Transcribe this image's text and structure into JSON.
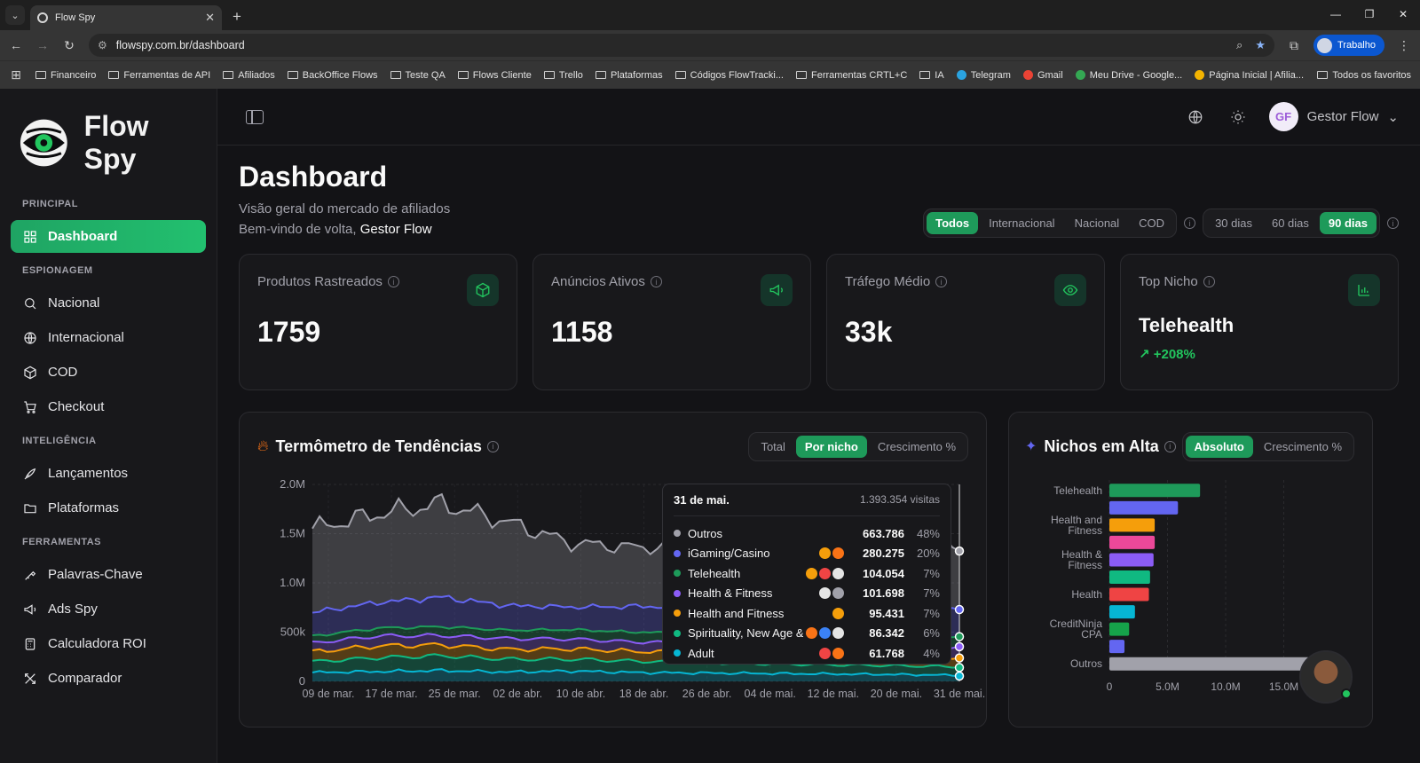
{
  "browser": {
    "tab_title": "Flow Spy",
    "url": "flowspy.com.br/dashboard",
    "profile": "Trabalho",
    "bookmarks": [
      "Financeiro",
      "Ferramentas de API",
      "Afiliados",
      "BackOffice Flows",
      "Teste QA",
      "Flows Cliente",
      "Trello",
      "Plataformas",
      "Códigos FlowTracki...",
      "Ferramentas CRTL+C",
      "IA",
      "Telegram",
      "Gmail",
      "Meu Drive - Google...",
      "Página Inicial | Afilia..."
    ],
    "bookmarks_right": "Todos os favoritos"
  },
  "sidebar": {
    "brand": "Flow Spy",
    "sections": [
      {
        "label": "PRINCIPAL",
        "items": [
          {
            "label": "Dashboard",
            "icon": "grid-icon",
            "active": true
          }
        ]
      },
      {
        "label": "ESPIONAGEM",
        "items": [
          {
            "label": "Nacional",
            "icon": "search-icon"
          },
          {
            "label": "Internacional",
            "icon": "globe-icon"
          },
          {
            "label": "COD",
            "icon": "box-icon"
          },
          {
            "label": "Checkout",
            "icon": "cart-icon"
          }
        ]
      },
      {
        "label": "INTELIGÊNCIA",
        "items": [
          {
            "label": "Lançamentos",
            "icon": "rocket-icon"
          },
          {
            "label": "Plataformas",
            "icon": "folder-icon"
          }
        ]
      },
      {
        "label": "FERRAMENTAS",
        "items": [
          {
            "label": "Palavras-Chave",
            "icon": "key-icon"
          },
          {
            "label": "Ads Spy",
            "icon": "megaphone-icon"
          },
          {
            "label": "Calculadora ROI",
            "icon": "calculator-icon"
          },
          {
            "label": "Comparador",
            "icon": "compare-icon"
          }
        ]
      }
    ]
  },
  "topbar": {
    "user_initials": "GF",
    "user_name": "Gestor Flow"
  },
  "header": {
    "title": "Dashboard",
    "subtitle": "Visão geral do mercado de afiliados",
    "welcome": "Bem-vindo de volta,",
    "welcome_name": "Gestor Flow",
    "market_filters": [
      "Todos",
      "Internacional",
      "Nacional",
      "COD"
    ],
    "market_selected": "Todos",
    "period_filters": [
      "30 dias",
      "60 dias",
      "90 dias"
    ],
    "period_selected": "90 dias"
  },
  "cards": [
    {
      "label": "Produtos Rastreados",
      "value": "1759",
      "icon": "box-icon"
    },
    {
      "label": "Anúncios Ativos",
      "value": "1158",
      "icon": "megaphone-icon"
    },
    {
      "label": "Tráfego Médio",
      "value": "33k",
      "icon": "eye-icon"
    },
    {
      "label": "Top Nicho",
      "value": "Telehealth",
      "growth": "+208%",
      "icon": "bar-chart-icon"
    }
  ],
  "trend": {
    "title": "Termômetro de Tendências",
    "tabs": [
      "Total",
      "Por nicho",
      "Crescimento %"
    ],
    "selected": "Por nicho",
    "tooltip": {
      "date": "31 de mai.",
      "total": "1.393.354 visitas",
      "rows": [
        {
          "name": "Outros",
          "value": "663.786",
          "pct": "48%",
          "color": "#a1a1aa"
        },
        {
          "name": "iGaming/Casino",
          "value": "280.275",
          "pct": "20%",
          "color": "#6366f1"
        },
        {
          "name": "Telehealth",
          "value": "104.054",
          "pct": "7%",
          "color": "#1e9a5a"
        },
        {
          "name": "Health & Fitness",
          "value": "101.698",
          "pct": "7%",
          "color": "#8b5cf6"
        },
        {
          "name": "Health and Fitness",
          "value": "95.431",
          "pct": "7%",
          "color": "#f59e0b"
        },
        {
          "name": "Spirituality, New Age &...",
          "value": "86.342",
          "pct": "6%",
          "color": "#10b981"
        },
        {
          "name": "Adult",
          "value": "61.768",
          "pct": "4%",
          "color": "#06b6d4"
        }
      ]
    }
  },
  "niches": {
    "title": "Nichos em Alta",
    "tabs": [
      "Absoluto",
      "Crescimento %"
    ],
    "selected": "Absoluto"
  },
  "chart_data": [
    {
      "type": "area",
      "title": "Termômetro de Tendências",
      "x_ticks": [
        "09 de mar.",
        "17 de mar.",
        "25 de mar.",
        "02 de abr.",
        "10 de abr.",
        "18 de abr.",
        "26 de abr.",
        "04 de mai.",
        "12 de mai.",
        "20 de mai.",
        "31 de mai."
      ],
      "y_ticks": [
        "0",
        "500k",
        "1.0M",
        "1.5M",
        "2.0M"
      ],
      "ylim": [
        0,
        2000000
      ],
      "stacked": true,
      "series": [
        {
          "name": "Adult",
          "color": "#06b6d4",
          "values": [
            90000,
            100000,
            110000,
            95000,
            105000,
            90000,
            85000,
            80000,
            75000,
            70000,
            61768
          ]
        },
        {
          "name": "Spirituality, New Age &...",
          "color": "#10b981",
          "values": [
            110000,
            140000,
            150000,
            130000,
            120000,
            115000,
            110000,
            100000,
            95000,
            90000,
            86342
          ]
        },
        {
          "name": "Health and Fitness",
          "color": "#f59e0b",
          "values": [
            100000,
            120000,
            110000,
            100000,
            105000,
            100000,
            95000,
            95000,
            95000,
            96000,
            95431
          ]
        },
        {
          "name": "Health & Fitness",
          "color": "#8b5cf6",
          "values": [
            90000,
            100000,
            95000,
            110000,
            100000,
            95000,
            100000,
            105000,
            100000,
            102000,
            101698
          ]
        },
        {
          "name": "Telehealth",
          "color": "#1e9a5a",
          "values": [
            70000,
            80000,
            90000,
            85000,
            95000,
            100000,
            98000,
            102000,
            104000,
            104000,
            104054
          ]
        },
        {
          "name": "iGaming/Casino",
          "color": "#6366f1",
          "values": [
            240000,
            260000,
            300000,
            250000,
            230000,
            260000,
            270000,
            275000,
            280000,
            285000,
            280275
          ]
        },
        {
          "name": "Outros",
          "color": "#a1a1aa",
          "values": [
            850000,
            900000,
            950000,
            850000,
            650000,
            600000,
            620000,
            660000,
            650000,
            660000,
            663786
          ]
        }
      ]
    },
    {
      "type": "bar",
      "orientation": "horizontal",
      "title": "Nichos em Alta",
      "categories": [
        "Telehealth",
        "",
        "Health and Fitness",
        "",
        "Health & Fitness",
        "",
        "Health",
        "",
        "CreditNinja CPA",
        "",
        "Outros"
      ],
      "values": [
        7800000,
        5900000,
        3900000,
        3900000,
        3800000,
        3500000,
        3400000,
        2200000,
        1700000,
        1300000,
        19200000
      ],
      "colors": [
        "#1e9a5a",
        "#6366f1",
        "#f59e0b",
        "#ec4899",
        "#8b5cf6",
        "#10b981",
        "#ef4444",
        "#06b6d4",
        "#16a34a",
        "#6366f1",
        "#a1a1aa"
      ],
      "x_ticks": [
        "0",
        "5.0M",
        "10.0M",
        "15.0M"
      ],
      "xlim": [
        0,
        20000000
      ]
    }
  ]
}
